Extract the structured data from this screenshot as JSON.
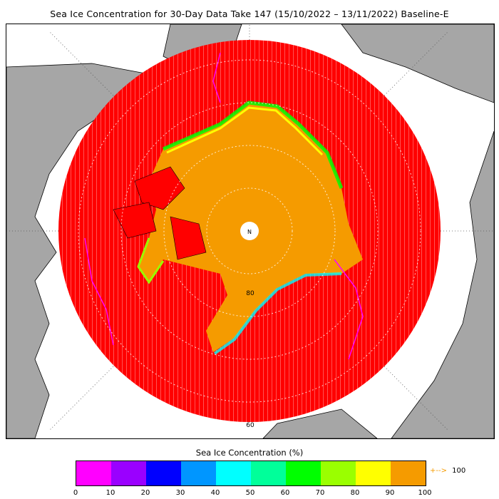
{
  "title": "Sea Ice Concentration for 30-Day Data Take 147 (15/10/2022 – 13/11/2022) Baseline-E",
  "map": {
    "pole_marker": "N",
    "latitude_labels": [
      "80",
      "60"
    ],
    "colors": {
      "ocean_low_concentration": "#ff0000",
      "ice_high_concentration": "#f59b00",
      "land": "#a6a6a6",
      "background": "#ffffff"
    }
  },
  "legend": {
    "title": "Sea Ice Concentration (%)",
    "ticks": [
      "0",
      "10",
      "20",
      "30",
      "40",
      "50",
      "60",
      "70",
      "80",
      "90",
      "100"
    ],
    "colors": [
      "#ff00ff",
      "#9a00ff",
      "#0000ff",
      "#0096ff",
      "#00ffff",
      "#00ff9a",
      "#00ff00",
      "#9aff00",
      "#ffff00",
      "#f59b00"
    ],
    "overflow_label": "100",
    "overflow_arrow": "+-->",
    "overflow_color": "#f59b00"
  }
}
